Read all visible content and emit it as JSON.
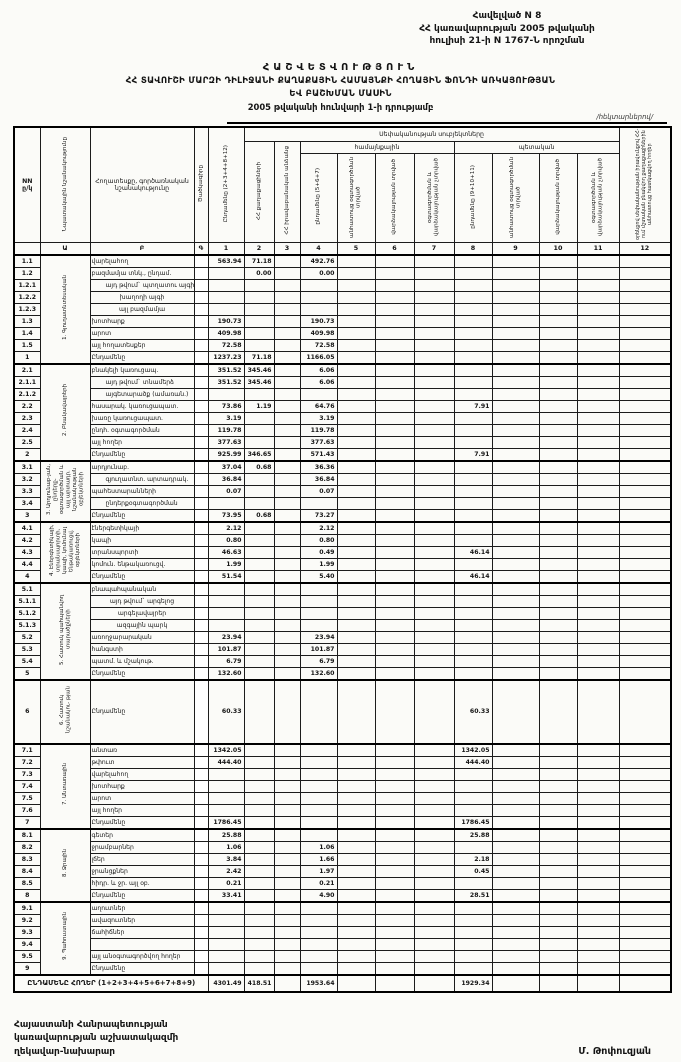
{
  "page": {
    "appendix": [
      "Հավելված N 8",
      "ՀՀ կառավարության 2005 թվականի",
      "հուլիսի 21-ի N 1767-Ն որոշման"
    ],
    "title1": "ՀԱՇՎԵՏՎՈՒԹՅՈՒՆ",
    "title2": "ՀՀ ՏԱՎՈՒՇԻ ՄԱՐԶԻ ԴԻԼԻՋԱՆԻ ՔԱՂԱՔԱՅԻՆ ՀԱՄԱՅՆՔԻ ՀՈՂԱՅԻՆ ՖՈՆԴԻ ԱՌԿԱՅՈՒԹՅԱՆ",
    "title3": "ԵՎ ԲԱՇԽՄԱՆ ՄԱՍԻՆ",
    "title4": "2005 թվականի հունվարի 1-ի դրությամբ",
    "units": "/հեկտարներով/",
    "footer_left": [
      "Հայաստանի Հանրապետության",
      "կառավարության աշխատակազմի",
      "ղեկավար-նախարար"
    ],
    "footer_right": "Մ. Թոփուզյան"
  },
  "table": {
    "header": {
      "nn": "NN\nը/կ",
      "purpose": "Նպատակային նշանակությունը",
      "land_type": "Հողատեսքը, գործառնական նշանակությունը",
      "code": "Ծածկագիրը",
      "c1": "Ընդամենը (2+3+4+8+12)",
      "subjects": "Սեփականության սուբյեկտները",
      "c2": "ՀՀ քաղաքացիների",
      "c3": "ՀՀ իրավաբանական անձանց",
      "community": "համայնքային",
      "state": "պետական",
      "c4": "ընդամենը (5+6+7)",
      "c5": "անհատույց օգտագործման տրված",
      "c6": "վարձակալության տրված",
      "c7": "օգտագործման և վարձակալության չտրված",
      "c8": "ընդամենը (9+10+11)",
      "c9": "անհատույց օգտագործման տրված",
      "c10": "վարձակալության տրված",
      "c11": "օգտագործման և վարձակալության չտրված",
      "c12": "օրենքով սեփականության իրավունքով ՀՀ-ում մշտական բնակվող քաղաքացիներին անհատույց հատկացվող հողեր"
    },
    "numbering": [
      "",
      "Ա",
      "Բ",
      "Գ",
      "1",
      "2",
      "3",
      "4",
      "5",
      "6",
      "7",
      "8",
      "9",
      "10",
      "11",
      "12"
    ],
    "sections": [
      {
        "label": "1. Գյուղատնտեսական",
        "rows": [
          {
            "n": "1.1",
            "label": "վարելահող",
            "v": {
              "1": "563.94",
              "2": "71.18",
              "4": "492.76"
            }
          },
          {
            "n": "1.2",
            "label": "բազմամյա տնկ., ընդամ.",
            "v": {
              "2": "0.00",
              "4": "0.00"
            }
          },
          {
            "n": "1.2.1",
            "label": "այդ թվում` պտղատու այգի",
            "i": 1
          },
          {
            "n": "1.2.2",
            "label": "խաղողի այգի",
            "i": 2
          },
          {
            "n": "1.2.3",
            "label": "այլ բազմամյա",
            "i": 2
          },
          {
            "n": "1.3",
            "label": "խոտհարք",
            "v": {
              "1": "190.73",
              "4": "190.73"
            }
          },
          {
            "n": "1.4",
            "label": "արոտ",
            "v": {
              "1": "409.98",
              "4": "409.98"
            }
          },
          {
            "n": "1.5",
            "label": "այլ հողատեսքեր",
            "v": {
              "1": "72.58",
              "4": "72.58"
            }
          },
          {
            "n": "1",
            "label": "Ընդամենը",
            "v": {
              "1": "1237.23",
              "2": "71.18",
              "4": "1166.05"
            }
          }
        ]
      },
      {
        "label": "2. Բնակավայրերի",
        "rows": [
          {
            "n": "2.1",
            "label": "բնակելի կառուցապ.",
            "v": {
              "1": "351.52",
              "2": "345.46",
              "4": "6.06"
            }
          },
          {
            "n": "2.1.1",
            "label": "այդ թվում` տնամերձ",
            "i": 1,
            "v": {
              "1": "351.52",
              "2": "345.46",
              "4": "6.06"
            }
          },
          {
            "n": "2.1.2",
            "label": "այգետարածք (ամառան.)",
            "i": 1
          },
          {
            "n": "2.2",
            "label": "հասարակ. կառուցապատ.",
            "v": {
              "1": "73.86",
              "2": "1.19",
              "4": "64.76",
              "8": "7.91"
            }
          },
          {
            "n": "2.3",
            "label": "խառը կառուցապատ.",
            "v": {
              "1": "3.19",
              "4": "3.19"
            }
          },
          {
            "n": "2.4",
            "label": "ընդհ. օգտագործման",
            "v": {
              "1": "119.78",
              "4": "119.78"
            }
          },
          {
            "n": "2.5",
            "label": "այլ հողեր",
            "v": {
              "1": "377.63",
              "4": "377.63"
            }
          },
          {
            "n": "2",
            "label": "Ընդամենը",
            "v": {
              "1": "925.99",
              "2": "346.65",
              "4": "571.43",
              "8": "7.91"
            }
          }
        ]
      },
      {
        "label": "3. Արդյունաբ-յան, ընդերք- օգտագործման և այլ արտադր. նշանակության օբյեկտների",
        "rows": [
          {
            "n": "3.1",
            "label": "արդյունաբ.",
            "v": {
              "1": "37.04",
              "2": "0.68",
              "4": "36.36"
            }
          },
          {
            "n": "3.2",
            "label": "գյուղատնտ. արտադրակ.",
            "i": 1,
            "v": {
              "1": "36.84",
              "4": "36.84"
            }
          },
          {
            "n": "3.3",
            "label": "պահեստարանների",
            "v": {
              "1": "0.07",
              "4": "0.07"
            }
          },
          {
            "n": "3.4",
            "label": "ընդերքօգտագործման",
            "i": 1
          },
          {
            "n": "3",
            "label": "Ընդամենը",
            "v": {
              "1": "73.95",
              "2": "0.68",
              "4": "73.27"
            }
          }
        ]
      },
      {
        "label": "4. Էներգետիկայի, տրանսպորտի, կապի, կոմունալ ենթակառուցվ. օբյեկտների",
        "rows": [
          {
            "n": "4.1",
            "label": "էներգետիկայի",
            "v": {
              "1": "2.12",
              "4": "2.12"
            }
          },
          {
            "n": "4.2",
            "label": "կապի",
            "v": {
              "1": "0.80",
              "4": "0.80"
            }
          },
          {
            "n": "4.3",
            "label": "տրանսպորտի",
            "v": {
              "1": "46.63",
              "4": "0.49",
              "8": "46.14"
            }
          },
          {
            "n": "4.4",
            "label": "կոմուն. ենթակառուցվ.",
            "v": {
              "1": "1.99",
              "4": "1.99"
            }
          },
          {
            "n": "4",
            "label": "Ընդամենը",
            "v": {
              "1": "51.54",
              "4": "5.40",
              "8": "46.14"
            }
          }
        ]
      },
      {
        "label": "5. Հատուկ պահպանվող տարածքների",
        "rows": [
          {
            "n": "5.1",
            "label": "բնապահպանական"
          },
          {
            "n": "5.1.1",
            "label": "այդ թվում` արգելոց",
            "i": 2
          },
          {
            "n": "5.1.2",
            "label": "արգելավայրեր",
            "i": 2
          },
          {
            "n": "5.1.3",
            "label": "ազգային պարկ",
            "i": 2
          },
          {
            "n": "5.2",
            "label": "առողջարարական",
            "v": {
              "1": "23.94",
              "4": "23.94"
            }
          },
          {
            "n": "5.3",
            "label": "հանգստի",
            "v": {
              "1": "101.87",
              "4": "101.87"
            }
          },
          {
            "n": "5.4",
            "label": "պատմ. և մշակութ.",
            "v": {
              "1": "6.79",
              "4": "6.79"
            }
          },
          {
            "n": "5",
            "label": "Ընդամենը",
            "v": {
              "1": "132.60",
              "4": "132.60"
            }
          }
        ]
      },
      {
        "label": "6. Հատուկ նշանակու- թյան",
        "rows": [
          {
            "n": "6",
            "label": "Ընդամենը",
            "h": 64,
            "v": {
              "1": "60.33",
              "8": "60.33"
            }
          }
        ]
      },
      {
        "label": "7. Անտառային",
        "rows": [
          {
            "n": "7.1",
            "label": "անտառ",
            "v": {
              "1": "1342.05",
              "8": "1342.05"
            }
          },
          {
            "n": "7.2",
            "label": "թփուտ",
            "v": {
              "1": "444.40",
              "8": "444.40"
            }
          },
          {
            "n": "7.3",
            "label": "վարելահող"
          },
          {
            "n": "7.4",
            "label": "խոտհարք"
          },
          {
            "n": "7.5",
            "label": "արոտ"
          },
          {
            "n": "7.6",
            "label": "այլ հողեր"
          },
          {
            "n": "7",
            "label": "Ընդամենը",
            "v": {
              "1": "1786.45",
              "8": "1786.45"
            }
          }
        ]
      },
      {
        "label": "8. Ջրային",
        "rows": [
          {
            "n": "8.1",
            "label": "գետեր",
            "v": {
              "1": "25.88",
              "8": "25.88"
            }
          },
          {
            "n": "8.2",
            "label": "ջրամբարներ",
            "v": {
              "1": "1.06",
              "4": "1.06"
            }
          },
          {
            "n": "8.3",
            "label": "լճեր",
            "v": {
              "1": "3.84",
              "4": "1.66",
              "8": "2.18"
            }
          },
          {
            "n": "8.4",
            "label": "ջրանցքներ",
            "v": {
              "1": "2.42",
              "4": "1.97",
              "8": "0.45"
            }
          },
          {
            "n": "8.5",
            "label": "հիդր. և ջր. այլ օբ.",
            "v": {
              "1": "0.21",
              "4": "0.21"
            }
          },
          {
            "n": "8",
            "label": "Ընդամենը",
            "v": {
              "1": "33.41",
              "4": "4.90",
              "8": "28.51"
            }
          }
        ]
      },
      {
        "label": "9. Պահուստային",
        "rows": [
          {
            "n": "9.1",
            "label": "աղուտներ"
          },
          {
            "n": "9.2",
            "label": "ավազուտներ"
          },
          {
            "n": "9.3",
            "label": "ճահիճներ"
          },
          {
            "n": "9.4",
            "label": ""
          },
          {
            "n": "9.5",
            "label": "այլ անօգտագործվող հողեր"
          },
          {
            "n": "9",
            "label": "Ընդամենը"
          }
        ]
      }
    ],
    "total_row": {
      "label": "ԸՆԴԱՄԵՆԸ ՀՈՂԵՐ (1+2+3+4+5+6+7+8+9)",
      "v": {
        "1": "4301.49",
        "2": "418.51",
        "4": "1953.64",
        "8": "1929.34"
      }
    }
  }
}
